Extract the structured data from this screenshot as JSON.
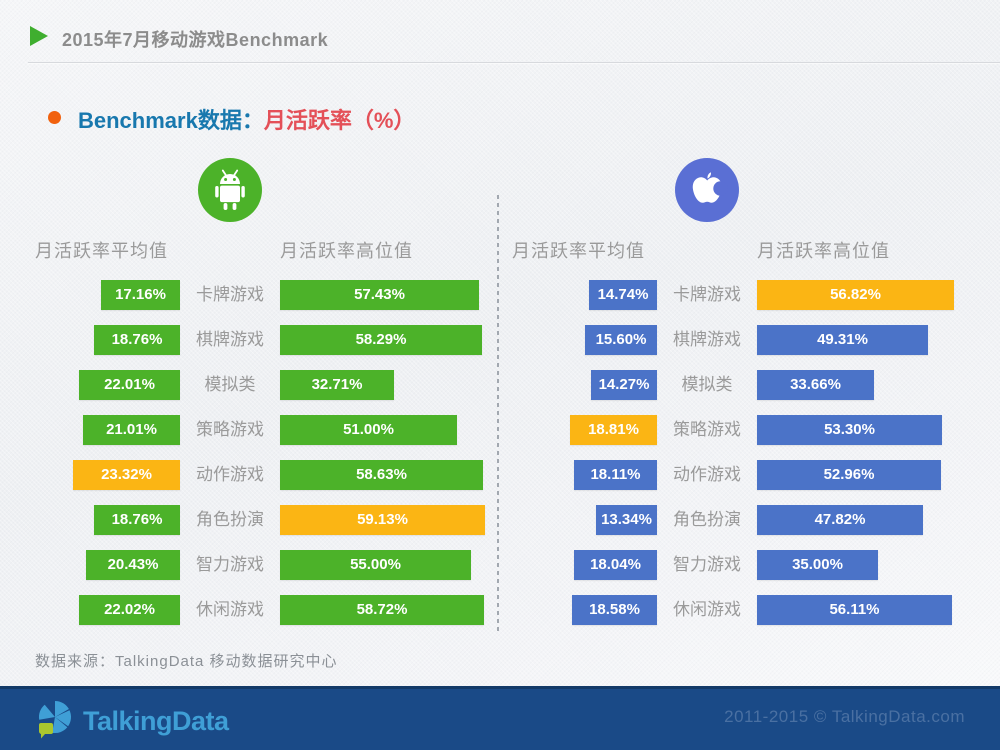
{
  "header": {
    "title": "2015年7月移动游戏Benchmark"
  },
  "section": {
    "lead": "Benchmark数据：",
    "metric": "月活跃率（%）"
  },
  "columns": {
    "avg_label": "月活跃率平均值",
    "high_label": "月活跃率高位值"
  },
  "categories": [
    "卡牌游戏",
    "棋牌游戏",
    "模拟类",
    "策略游戏",
    "动作游戏",
    "角色扮演",
    "智力游戏",
    "休闲游戏"
  ],
  "platforms": [
    {
      "key": "android",
      "icon": "android-icon",
      "bar_color": "#4cb229",
      "avg_labels": [
        "17.16%",
        "18.76%",
        "22.01%",
        "21.01%",
        "23.32%",
        "18.76%",
        "20.43%",
        "22.02%"
      ],
      "high_labels": [
        "57.43%",
        "58.29%",
        "32.71%",
        "51.00%",
        "58.63%",
        "59.13%",
        "55.00%",
        "58.72%"
      ],
      "avg_highlight_index": 4,
      "high_highlight_index": 5
    },
    {
      "key": "apple",
      "icon": "apple-icon",
      "bar_color": "#4b73c8",
      "avg_labels": [
        "14.74%",
        "15.60%",
        "14.27%",
        "18.81%",
        "18.11%",
        "13.34%",
        "18.04%",
        "18.58%"
      ],
      "high_labels": [
        "56.82%",
        "49.31%",
        "33.66%",
        "53.30%",
        "52.96%",
        "47.82%",
        "35.00%",
        "56.11%"
      ],
      "avg_highlight_index": 3,
      "high_highlight_index": 0
    }
  ],
  "colors": {
    "highlight": "#fbb514",
    "android_green": "#4cb229",
    "ios_blue": "#4b73c8",
    "apple_circle": "#5a6fd4",
    "section_blue": "#1878ae",
    "section_red": "#e45058",
    "bottom_bar": "#1a4a87"
  },
  "footer": {
    "source": "数据来源：TalkingData 移动数据研究中心"
  },
  "bottombar": {
    "logo_text": "TalkingData",
    "copyright": "2011-2015 © TalkingData.com"
  },
  "chart_data": [
    {
      "type": "bar",
      "title": "Android 月活跃率（%）",
      "categories": [
        "卡牌游戏",
        "棋牌游戏",
        "模拟类",
        "策略游戏",
        "动作游戏",
        "角色扮演",
        "智力游戏",
        "休闲游戏"
      ],
      "series": [
        {
          "name": "月活跃率平均值",
          "values": [
            17.16,
            18.76,
            22.01,
            21.01,
            23.32,
            18.76,
            20.43,
            22.02
          ]
        },
        {
          "name": "月活跃率高位值",
          "values": [
            57.43,
            58.29,
            32.71,
            51.0,
            58.63,
            59.13,
            55.0,
            58.72
          ]
        }
      ],
      "orientation": "horizontal",
      "value_unit": "%",
      "highlight_rule": "max value of each series shown in orange #fbb514",
      "bar_color": "#4cb229"
    },
    {
      "type": "bar",
      "title": "iOS 月活跃率（%）",
      "categories": [
        "卡牌游戏",
        "棋牌游戏",
        "模拟类",
        "策略游戏",
        "动作游戏",
        "角色扮演",
        "智力游戏",
        "休闲游戏"
      ],
      "series": [
        {
          "name": "月活跃率平均值",
          "values": [
            14.74,
            15.6,
            14.27,
            18.81,
            18.11,
            13.34,
            18.04,
            18.58
          ]
        },
        {
          "name": "月活跃率高位值",
          "values": [
            56.82,
            49.31,
            33.66,
            53.3,
            52.96,
            47.82,
            35.0,
            56.11
          ]
        }
      ],
      "orientation": "horizontal",
      "value_unit": "%",
      "highlight_rule": "max value of each series shown in orange #fbb514",
      "bar_color": "#4b73c8"
    }
  ]
}
